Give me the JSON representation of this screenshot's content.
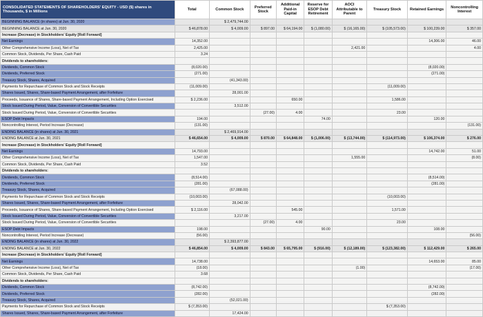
{
  "header": {
    "title": "CONSOLIDATED STATEMENTS OF SHAREHOLDERS' EQUITY - USD ($) shares in Thousands, $ in Millions",
    "columns": [
      "Total",
      "Common Stock",
      "Preferred Stock",
      "Additional Paid-in Capital",
      "Reserve for ESOP Debt Retirement",
      "AOCI Attributable to Parent",
      "Treasury Stock",
      "Retained Earnings",
      "Noncontrolling Interest"
    ]
  },
  "rows": [
    {
      "label": "BEGINNING BALANCE (in shares) at Jun. 30, 2020",
      "hl": true,
      "type": "balance",
      "cells": [
        "",
        "$ 2,479,744.00",
        "",
        "",
        "",
        "",
        "",
        "",
        ""
      ]
    },
    {
      "label": "BEGINNING BALANCE at Jun. 30, 2020",
      "type": "balance",
      "cells": [
        "$ 46,878.00",
        "$ 4,009.00",
        "$ 897.00",
        "$ 64,194.00",
        "$ (1,080.00)",
        "$ (16,165.00)",
        "$ (105,573.00)",
        "$ 100,239.00",
        "$ 357.00"
      ]
    },
    {
      "label": "Increase (Decrease) in Stockholders' Equity [Roll Forward]",
      "bold": true,
      "cells": [
        "",
        "",
        "",
        "",
        "",
        "",
        "",
        "",
        ""
      ]
    },
    {
      "label": "Net Earnings",
      "hl": true,
      "cells": [
        "14,352.00",
        "",
        "",
        "",
        "",
        "",
        "",
        "14,306.00",
        "46.00"
      ]
    },
    {
      "label": "Other Comprehensive Income (Loss), Net of Tax",
      "cells": [
        "2,425.00",
        "",
        "",
        "",
        "",
        "2,421.00",
        "",
        "",
        "4.00"
      ]
    },
    {
      "label": "Common Stock, Dividends, Per Share, Cash Paid",
      "cells": [
        "3.24",
        "",
        "",
        "",
        "",
        "",
        "",
        "",
        ""
      ]
    },
    {
      "label": "Dividends to shareholders:",
      "bold": true,
      "cells": [
        "",
        "",
        "",
        "",
        "",
        "",
        "",
        "",
        ""
      ]
    },
    {
      "label": "Dividends, Common Stock",
      "hl": true,
      "cells": [
        "(8,020.00)",
        "",
        "",
        "",
        "",
        "",
        "",
        "(8,020.00)",
        ""
      ]
    },
    {
      "label": "Dividends, Preferred Stock",
      "hl": true,
      "cells": [
        "(271.00)",
        "",
        "",
        "",
        "",
        "",
        "",
        "(271.00)",
        ""
      ]
    },
    {
      "label": "Treasury Stock, Shares, Acquired",
      "hl": true,
      "cells": [
        "",
        "(41,343.00)",
        "",
        "",
        "",
        "",
        "",
        "",
        ""
      ]
    },
    {
      "label": "Payments for Repurchase of Common Stock and Stock Receipts",
      "cells": [
        "(11,009.00)",
        "",
        "",
        "",
        "",
        "",
        "(11,009.00)",
        "",
        ""
      ]
    },
    {
      "label": "Shares Issued, Shares, Share-based Payment Arrangement, after Forfeiture",
      "hl": true,
      "cells": [
        "",
        "28,001.00",
        "",
        "",
        "",
        "",
        "",
        "",
        ""
      ]
    },
    {
      "label": "Proceeds, Issuance of Shares, Share-based Payment Arrangement, Including Option Exercised",
      "cells": [
        "$ 2,236.00",
        "",
        "",
        "650.00",
        "",
        "",
        "1,586.00",
        "",
        ""
      ]
    },
    {
      "label": "Stock Issued During Period, Value, Conversion of Convertible Securities",
      "hl": true,
      "cells": [
        "",
        "3,512.00",
        "",
        "",
        "",
        "",
        "",
        "",
        ""
      ]
    },
    {
      "label": "Stock Issued During Period, Value, Conversion of Convertible Securities",
      "cells": [
        "",
        "",
        "(27.00)",
        "4.00",
        "",
        "",
        "23.00",
        "",
        ""
      ]
    },
    {
      "label": "ESOP Debt Impacts",
      "hl": true,
      "cells": [
        "194.00",
        "",
        "",
        "",
        "74.00",
        "",
        "",
        "120.00",
        ""
      ]
    },
    {
      "label": "Noncontrolling Interest, Period Increase (Decrease)",
      "cells": [
        "(131.00)",
        "",
        "",
        "",
        "",
        "",
        "",
        "",
        "(131.00)"
      ]
    },
    {
      "label": "ENDING BALANCE (in shares) at Jun. 30, 2021",
      "hl": true,
      "type": "balance",
      "cells": [
        "",
        "$ 2,469,914.00",
        "",
        "",
        "",
        "",
        "",
        "",
        ""
      ]
    },
    {
      "label": "ENDING BALANCE at Jun. 30, 2021",
      "type": "balance",
      "total": true,
      "cells": [
        "$ 46,654.00",
        "$ 4,009.00",
        "$ 870.00",
        "$ 64,848.00",
        "$ (1,006.00)",
        "$ (13,744.00)",
        "$ (114,973.00)",
        "$ 106,374.00",
        "$ 276.00"
      ]
    },
    {
      "label": "Increase (Decrease) in Stockholders' Equity [Roll Forward]",
      "bold": true,
      "cells": [
        "",
        "",
        "",
        "",
        "",
        "",
        "",
        "",
        ""
      ]
    },
    {
      "label": "Net Earnings",
      "hl": true,
      "cells": [
        "14,793.00",
        "",
        "",
        "",
        "",
        "",
        "",
        "14,742.00",
        "51.00"
      ]
    },
    {
      "label": "Other Comprehensive Income (Loss), Net of Tax",
      "cells": [
        "1,547.00",
        "",
        "",
        "",
        "",
        "1,555.00",
        "",
        "",
        "(8.00)"
      ]
    },
    {
      "label": "Common Stock, Dividends, Per Share, Cash Paid",
      "cells": [
        "3.52",
        "",
        "",
        "",
        "",
        "",
        "",
        "",
        ""
      ]
    },
    {
      "label": "Dividends to shareholders:",
      "bold": true,
      "cells": [
        "",
        "",
        "",
        "",
        "",
        "",
        "",
        "",
        ""
      ]
    },
    {
      "label": "Dividends, Common Stock",
      "hl": true,
      "cells": [
        "(8,514.00)",
        "",
        "",
        "",
        "",
        "",
        "",
        "(8,514.00)",
        ""
      ]
    },
    {
      "label": "Dividends, Preferred Stock",
      "hl": true,
      "cells": [
        "(281.00)",
        "",
        "",
        "",
        "",
        "",
        "",
        "(281.00)",
        ""
      ]
    },
    {
      "label": "Treasury Stock, Shares, Acquired",
      "hl": true,
      "cells": [
        "",
        "(67,088.00)",
        "",
        "",
        "",
        "",
        "",
        "",
        ""
      ]
    },
    {
      "label": "Payments for Repurchase of Common Stock and Stock Receipts",
      "cells": [
        "(10,003.00)",
        "",
        "",
        "",
        "",
        "",
        "(10,003.00)",
        "",
        ""
      ]
    },
    {
      "label": "Shares Issued, Shares, Share-based Payment Arrangement, after Forfeiture",
      "hl": true,
      "cells": [
        "",
        "28,042.00",
        "",
        "",
        "",
        "",
        "",
        "",
        ""
      ]
    },
    {
      "label": "Proceeds, Issuance of Shares, Share-based Payment Arrangement, Including Option Exercised",
      "cells": [
        "$ 2,116.00",
        "",
        "",
        "545.00",
        "",
        "",
        "1,571.00",
        "",
        ""
      ]
    },
    {
      "label": "Stock Issued During Period, Value, Conversion of Convertible Securities",
      "hl": true,
      "cells": [
        "",
        "3,217.00",
        "",
        "",
        "",
        "",
        "",
        "",
        ""
      ]
    },
    {
      "label": "Stock Issued During Period, Value, Conversion of Convertible Securities",
      "cells": [
        "",
        "",
        "(27.00)",
        "4.00",
        "",
        "",
        "23.00",
        "",
        ""
      ]
    },
    {
      "label": "ESOP Debt Impacts",
      "hl": true,
      "cells": [
        "198.00",
        "",
        "",
        "",
        "90.00",
        "",
        "",
        "108.00",
        ""
      ]
    },
    {
      "label": "Noncontrolling Interest, Period Increase (Decrease)",
      "cells": [
        "(56.00)",
        "",
        "",
        "",
        "",
        "",
        "",
        "",
        "(56.00)"
      ]
    },
    {
      "label": "ENDING BALANCE (in shares) at Jun. 30, 2022",
      "hl": true,
      "type": "balance",
      "cells": [
        "",
        "$ 2,393,877.00",
        "",
        "",
        "",
        "",
        "",
        "",
        ""
      ]
    },
    {
      "label": "ENDING BALANCE at Jun. 30, 2022",
      "type": "balance",
      "total": true,
      "cells": [
        "$ 46,854.00",
        "$ 4,009.00",
        "$ 843.00",
        "$ 65,795.00",
        "$ (916.00)",
        "$ (12,189.00)",
        "$ (123,382.00)",
        "$ 112,429.00",
        "$ 265.00"
      ]
    },
    {
      "label": "Increase (Decrease) in Stockholders' Equity [Roll Forward]",
      "bold": true,
      "cells": [
        "",
        "",
        "",
        "",
        "",
        "",
        "",
        "",
        ""
      ]
    },
    {
      "label": "Net Earnings",
      "hl": true,
      "cells": [
        "14,738.00",
        "",
        "",
        "",
        "",
        "",
        "",
        "14,653.00",
        "85.00"
      ]
    },
    {
      "label": "Other Comprehensive Income (Loss), Net of Tax",
      "cells": [
        "(18.00)",
        "",
        "",
        "",
        "",
        "(1.00)",
        "",
        "",
        "(17.00)"
      ]
    },
    {
      "label": "Common Stock, Dividends, Per Share, Cash Paid",
      "cells": [
        "3.68",
        "",
        "",
        "",
        "",
        "",
        "",
        "",
        ""
      ]
    },
    {
      "label": "Dividends to shareholders:",
      "bold": true,
      "cells": [
        "",
        "",
        "",
        "",
        "",
        "",
        "",
        "",
        ""
      ]
    },
    {
      "label": "Dividends, Common Stock",
      "hl": true,
      "cells": [
        "(8,742.00)",
        "",
        "",
        "",
        "",
        "",
        "",
        "(8,742.00)",
        ""
      ]
    },
    {
      "label": "Dividends, Preferred Stock",
      "hl": true,
      "cells": [
        "(282.00)",
        "",
        "",
        "",
        "",
        "",
        "",
        "(282.00)",
        ""
      ]
    },
    {
      "label": "Treasury Stock, Shares, Acquired",
      "hl": true,
      "cells": [
        "",
        "(52,021.00)",
        "",
        "",
        "",
        "",
        "",
        "",
        ""
      ]
    },
    {
      "label": "Payments for Repurchase of Common Stock and Stock Receipts",
      "cells": [
        "$ (7,353.00)",
        "",
        "",
        "",
        "",
        "",
        "$ (7,353.00)",
        "",
        ""
      ]
    },
    {
      "label": "Shares Issued, Shares, Share-based Payment Arrangement, after Forfeiture",
      "hl": true,
      "cells": [
        "",
        "17,424.00",
        "",
        "",
        "",
        "",
        "",
        "",
        ""
      ]
    }
  ]
}
